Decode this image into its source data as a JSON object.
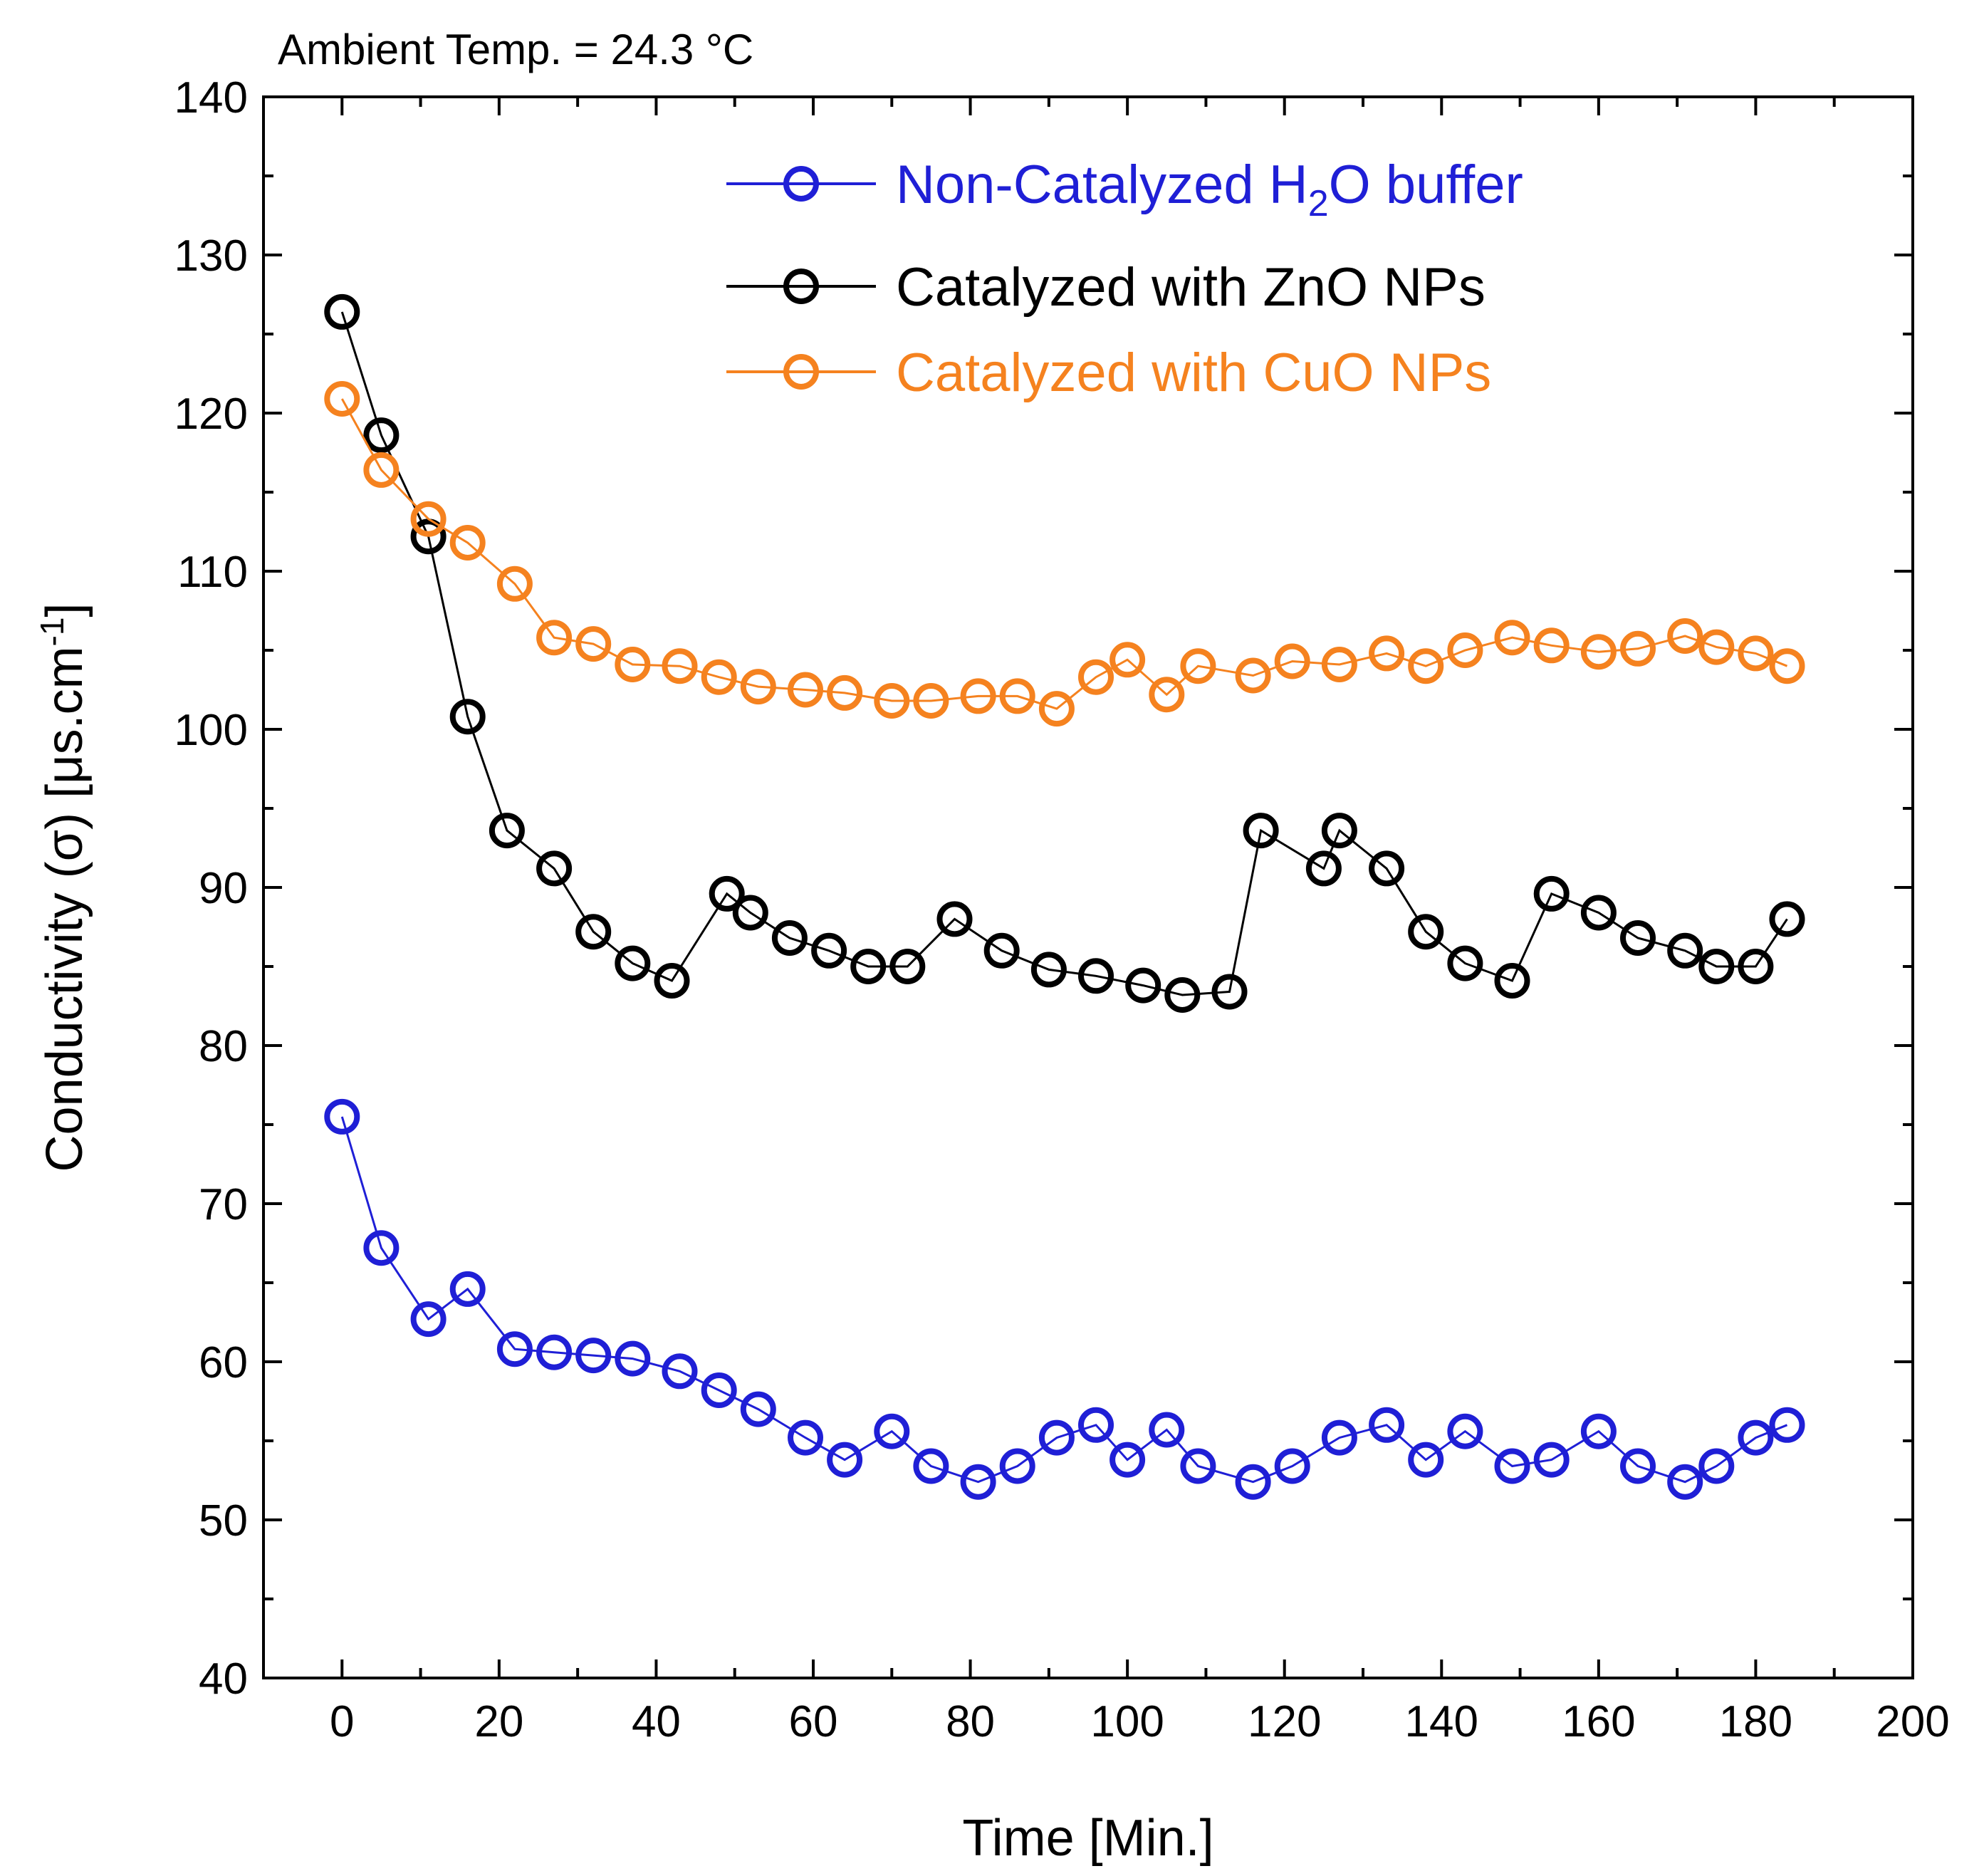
{
  "chart_data": {
    "type": "line",
    "title": "",
    "annotation": "Ambient Temp. = 24.3 °C",
    "xlabel": "Time [Min.]",
    "ylabel": {
      "main": "Conductivity (σ) [μs.cm",
      "sup": "-1",
      "close": "]"
    },
    "xlim": [
      -10,
      200
    ],
    "ylim": [
      40,
      140
    ],
    "x_ticks": [
      0,
      20,
      40,
      60,
      80,
      100,
      120,
      140,
      160,
      180,
      200
    ],
    "y_ticks": [
      40,
      50,
      60,
      70,
      80,
      90,
      100,
      110,
      120,
      130,
      140
    ],
    "x_minor_ticks": [
      10,
      30,
      50,
      70,
      90,
      110,
      130,
      150,
      170,
      190
    ],
    "y_minor_ticks": [
      45,
      55,
      65,
      75,
      85,
      95,
      105,
      115,
      125,
      135
    ],
    "legend_position": "top-right",
    "series": [
      {
        "key": "water",
        "name": "Non-Catalyzed H",
        "name_sub": "2",
        "name_rest": "O buffer",
        "color": "#1f1fd6",
        "x": [
          0,
          5,
          11,
          16,
          22,
          27,
          32,
          37,
          43,
          48,
          53,
          59,
          64,
          70,
          75,
          81,
          86,
          91,
          96,
          100,
          105,
          109,
          116,
          121,
          127,
          133,
          138,
          143,
          149,
          154,
          160,
          165,
          171,
          175,
          180,
          184
        ],
        "y": [
          75.5,
          67.2,
          62.7,
          64.6,
          60.8,
          60.6,
          60.4,
          60.2,
          59.4,
          58.2,
          57.0,
          55.2,
          53.8,
          55.6,
          53.4,
          52.4,
          53.4,
          55.2,
          56.0,
          53.8,
          55.7,
          53.4,
          52.4,
          53.4,
          55.2,
          56.0,
          53.8,
          55.6,
          53.4,
          53.8,
          55.6,
          53.4,
          52.4,
          53.4,
          55.2,
          56.0
        ]
      },
      {
        "key": "zno",
        "name": "Catalyzed with ZnO NPs",
        "color": "#000000",
        "x": [
          0,
          5,
          11,
          16,
          21,
          27,
          32,
          37,
          42,
          49,
          52,
          57,
          62,
          67,
          72,
          78,
          84,
          90,
          96,
          102,
          107,
          113,
          117,
          125,
          127,
          133,
          138,
          143,
          149,
          154,
          160,
          165,
          171,
          175,
          180,
          184
        ],
        "y": [
          126.4,
          118.6,
          112.2,
          100.8,
          93.6,
          91.2,
          87.2,
          85.2,
          84.1,
          89.6,
          88.4,
          86.8,
          86.0,
          85.0,
          85.0,
          88.0,
          86.0,
          84.8,
          84.4,
          83.8,
          83.2,
          83.4,
          93.6,
          91.2,
          93.6,
          91.2,
          87.2,
          85.2,
          84.1,
          89.6,
          88.4,
          86.8,
          86.0,
          85.0,
          85.0,
          88.0
        ]
      },
      {
        "key": "cuo",
        "name": "Catalyzed with CuO NPs",
        "color": "#f5821f",
        "x": [
          0,
          5,
          11,
          16,
          22,
          27,
          32,
          37,
          43,
          48,
          53,
          59,
          64,
          70,
          75,
          81,
          86,
          91,
          96,
          100,
          105,
          109,
          116,
          121,
          127,
          133,
          138,
          143,
          149,
          154,
          160,
          165,
          171,
          175,
          180,
          184
        ],
        "y": [
          120.9,
          116.4,
          113.3,
          111.8,
          109.2,
          105.8,
          105.4,
          104.1,
          104.0,
          103.3,
          102.7,
          102.5,
          102.3,
          101.8,
          101.8,
          102.1,
          102.1,
          101.3,
          103.3,
          104.4,
          102.2,
          104.0,
          103.4,
          104.3,
          104.1,
          104.8,
          104.0,
          105.0,
          105.8,
          105.3,
          104.9,
          105.1,
          105.9,
          105.2,
          104.8,
          104.0
        ]
      }
    ]
  }
}
